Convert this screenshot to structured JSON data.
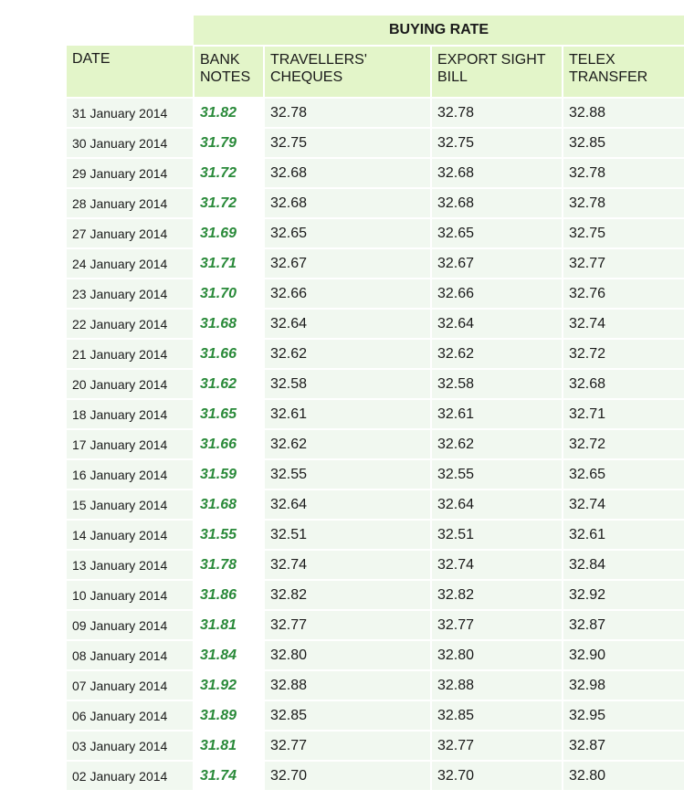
{
  "header": {
    "group": "BUYING RATE",
    "columns": [
      "DATE",
      "BANK NOTES",
      "TRAVELLERS' CHEQUES",
      "EXPORT SIGHT BILL",
      "TELEX TRANSFER"
    ],
    "column_lines": [
      [
        "DATE"
      ],
      [
        "BANK",
        "NOTES"
      ],
      [
        "TRAVELLERS'",
        "CHEQUES"
      ],
      [
        "EXPORT SIGHT",
        "BILL"
      ],
      [
        "TELEX",
        "TRANSFER"
      ]
    ]
  },
  "colors": {
    "header_bg": "#e3f5c9",
    "row_bg": "#f1f8f0",
    "bank_notes_text": "#2a8a3a"
  },
  "rows": [
    [
      "31 January 2014",
      "31.82",
      "32.78",
      "32.78",
      "32.88"
    ],
    [
      "30 January 2014",
      "31.79",
      "32.75",
      "32.75",
      "32.85"
    ],
    [
      "29 January 2014",
      "31.72",
      "32.68",
      "32.68",
      "32.78"
    ],
    [
      "28 January 2014",
      "31.72",
      "32.68",
      "32.68",
      "32.78"
    ],
    [
      "27 January 2014",
      "31.69",
      "32.65",
      "32.65",
      "32.75"
    ],
    [
      "24 January 2014",
      "31.71",
      "32.67",
      "32.67",
      "32.77"
    ],
    [
      "23 January 2014",
      "31.70",
      "32.66",
      "32.66",
      "32.76"
    ],
    [
      "22 January 2014",
      "31.68",
      "32.64",
      "32.64",
      "32.74"
    ],
    [
      "21 January 2014",
      "31.66",
      "32.62",
      "32.62",
      "32.72"
    ],
    [
      "20 January 2014",
      "31.62",
      "32.58",
      "32.58",
      "32.68"
    ],
    [
      "18 January 2014",
      "31.65",
      "32.61",
      "32.61",
      "32.71"
    ],
    [
      "17 January 2014",
      "31.66",
      "32.62",
      "32.62",
      "32.72"
    ],
    [
      "16 January 2014",
      "31.59",
      "32.55",
      "32.55",
      "32.65"
    ],
    [
      "15 January 2014",
      "31.68",
      "32.64",
      "32.64",
      "32.74"
    ],
    [
      "14 January 2014",
      "31.55",
      "32.51",
      "32.51",
      "32.61"
    ],
    [
      "13 January 2014",
      "31.78",
      "32.74",
      "32.74",
      "32.84"
    ],
    [
      "10 January 2014",
      "31.86",
      "32.82",
      "32.82",
      "32.92"
    ],
    [
      "09 January 2014",
      "31.81",
      "32.77",
      "32.77",
      "32.87"
    ],
    [
      "08 January 2014",
      "31.84",
      "32.80",
      "32.80",
      "32.90"
    ],
    [
      "07 January 2014",
      "31.92",
      "32.88",
      "32.88",
      "32.98"
    ],
    [
      "06 January 2014",
      "31.89",
      "32.85",
      "32.85",
      "32.95"
    ],
    [
      "03 January 2014",
      "31.81",
      "32.77",
      "32.77",
      "32.87"
    ],
    [
      "02 January 2014",
      "31.74",
      "32.70",
      "32.70",
      "32.80"
    ]
  ]
}
